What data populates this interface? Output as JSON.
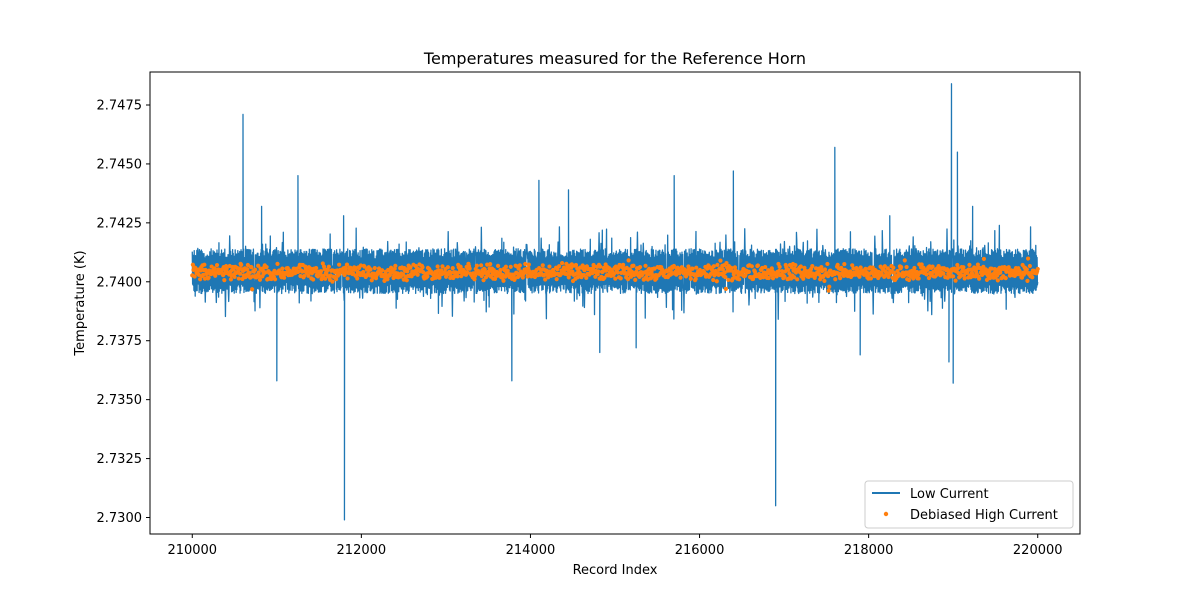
{
  "chart_data": {
    "type": "line",
    "title": "Temperatures measured for the Reference Horn",
    "xlabel": "Record Index",
    "ylabel": "Temperature (K)",
    "xlim": [
      209500,
      220500
    ],
    "ylim": [
      2.7293,
      2.7489
    ],
    "xticks": [
      210000,
      212000,
      214000,
      216000,
      218000,
      220000
    ],
    "xtick_labels": [
      "210000",
      "212000",
      "214000",
      "216000",
      "218000",
      "220000"
    ],
    "yticks": [
      2.73,
      2.7325,
      2.735,
      2.7375,
      2.74,
      2.7425,
      2.745,
      2.7475
    ],
    "ytick_labels": [
      "2.7300",
      "2.7325",
      "2.7350",
      "2.7375",
      "2.7400",
      "2.7425",
      "2.7450",
      "2.7475"
    ],
    "legend_position": "lower-right",
    "series": [
      {
        "name": "Low Current",
        "kind": "line",
        "color": "#1f77b4",
        "x_range": [
          210000,
          220000
        ],
        "baseline": 2.7404,
        "band_low": 2.7395,
        "band_high": 2.7414,
        "spikes": [
          {
            "x": 210600,
            "y": 2.7471
          },
          {
            "x": 211250,
            "y": 2.7445
          },
          {
            "x": 210820,
            "y": 2.7432
          },
          {
            "x": 211000,
            "y": 2.7358
          },
          {
            "x": 211800,
            "y": 2.7299
          },
          {
            "x": 211790,
            "y": 2.7428
          },
          {
            "x": 213780,
            "y": 2.7358
          },
          {
            "x": 214100,
            "y": 2.7443
          },
          {
            "x": 214450,
            "y": 2.7439
          },
          {
            "x": 214820,
            "y": 2.737
          },
          {
            "x": 215250,
            "y": 2.7372
          },
          {
            "x": 215700,
            "y": 2.7445
          },
          {
            "x": 216400,
            "y": 2.7447
          },
          {
            "x": 216900,
            "y": 2.7305
          },
          {
            "x": 217600,
            "y": 2.7457
          },
          {
            "x": 217900,
            "y": 2.7369
          },
          {
            "x": 218250,
            "y": 2.7428
          },
          {
            "x": 218950,
            "y": 2.7366
          },
          {
            "x": 218980,
            "y": 2.7484
          },
          {
            "x": 219000,
            "y": 2.7357
          },
          {
            "x": 219050,
            "y": 2.7455
          },
          {
            "x": 219230,
            "y": 2.7432
          }
        ]
      },
      {
        "name": "Debiased High Current",
        "kind": "scatter",
        "color": "#ff7f0e",
        "x_range": [
          210000,
          220000
        ],
        "baseline": 2.7404,
        "spread": 0.0004
      }
    ]
  }
}
